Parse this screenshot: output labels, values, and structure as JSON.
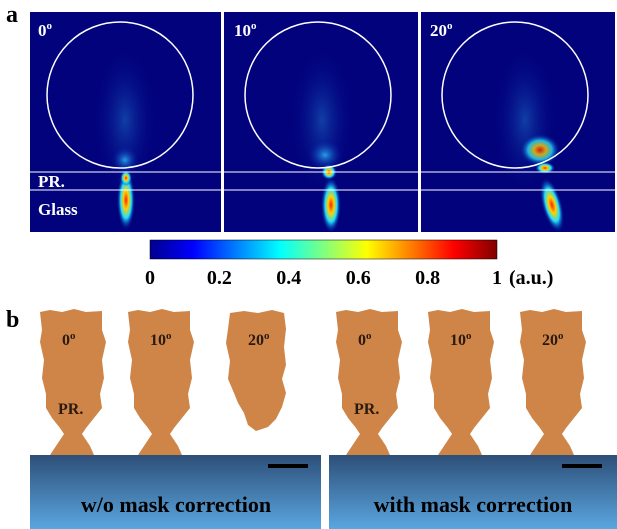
{
  "panel_a": {
    "label": "a",
    "angles": [
      {
        "value": "0",
        "unit": "o"
      },
      {
        "value": "10",
        "unit": "o"
      },
      {
        "value": "20",
        "unit": "o"
      }
    ],
    "layers": [
      "PR.",
      "Glass"
    ],
    "colorbar": {
      "ticks": [
        0,
        0.2,
        0.4,
        0.6,
        0.8,
        1
      ],
      "unit": "(a.u.)"
    }
  },
  "panel_b": {
    "label": "b",
    "without_correction": {
      "angles": [
        {
          "value": "0",
          "unit": "o"
        },
        {
          "value": "10",
          "unit": "o"
        },
        {
          "value": "20",
          "unit": "o"
        }
      ],
      "layer": "PR.",
      "caption": "w/o mask correction"
    },
    "with_correction": {
      "angles": [
        {
          "value": "0",
          "unit": "o"
        },
        {
          "value": "10",
          "unit": "o"
        },
        {
          "value": "20",
          "unit": "o"
        }
      ],
      "layer": "PR.",
      "caption": "with mask correction"
    }
  }
}
